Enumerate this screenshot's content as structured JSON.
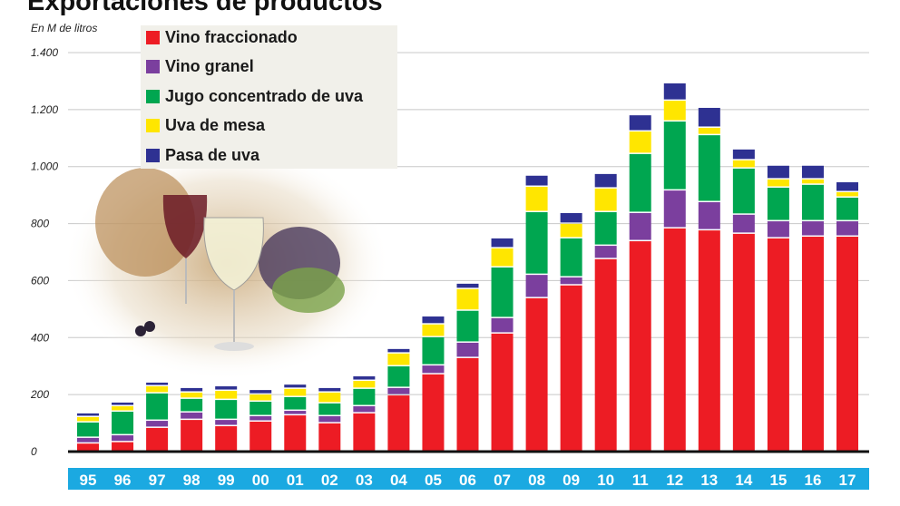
{
  "chart_data": {
    "type": "bar",
    "stacked": true,
    "title": "Exportaciones de productos",
    "ylabel": "En M de litros",
    "ylim": [
      0,
      1400
    ],
    "yticks": [
      0,
      200,
      400,
      600,
      800,
      1000,
      1200,
      1400
    ],
    "ytick_labels": [
      "0",
      "200",
      "400",
      "600",
      "800",
      "1.000",
      "1.200",
      "1.400"
    ],
    "grid": true,
    "legend_position": "top-left",
    "categories": [
      "95",
      "96",
      "97",
      "98",
      "99",
      "00",
      "01",
      "02",
      "03",
      "04",
      "05",
      "06",
      "07",
      "08",
      "09",
      "10",
      "11",
      "12",
      "13",
      "14",
      "15",
      "16",
      "17"
    ],
    "series": [
      {
        "name": "Vino fraccionado",
        "color": "#ed1c24",
        "values": [
          28,
          33,
          83,
          111,
          89,
          105,
          127,
          99,
          134,
          197,
          271,
          328,
          414,
          538,
          583,
          675,
          738,
          783,
          776,
          764,
          748,
          754,
          754
        ]
      },
      {
        "name": "Vino granel",
        "color": "#7b3f9e",
        "values": [
          20,
          24,
          25,
          26,
          22,
          19,
          16,
          25,
          25,
          26,
          31,
          54,
          54,
          82,
          28,
          47,
          99,
          133,
          99,
          67,
          60,
          54,
          54
        ]
      },
      {
        "name": "Jugo concentrado de uva",
        "color": "#00a650",
        "values": [
          54,
          83,
          96,
          48,
          70,
          51,
          48,
          45,
          61,
          76,
          99,
          112,
          178,
          220,
          137,
          118,
          207,
          242,
          235,
          162,
          118,
          128,
          83
        ]
      },
      {
        "name": "Uva de mesa",
        "color": "#ffe600",
        "values": [
          19,
          19,
          25,
          22,
          32,
          25,
          29,
          38,
          28,
          45,
          45,
          76,
          67,
          89,
          51,
          83,
          79,
          73,
          26,
          29,
          29,
          19,
          19
        ]
      },
      {
        "name": "Pasa de uva",
        "color": "#2e3192",
        "values": [
          13,
          13,
          13,
          16,
          16,
          16,
          15,
          16,
          16,
          16,
          28,
          19,
          35,
          39,
          38,
          51,
          57,
          61,
          70,
          38,
          48,
          48,
          35
        ]
      }
    ],
    "category_band_color": "#1ba9e1"
  }
}
